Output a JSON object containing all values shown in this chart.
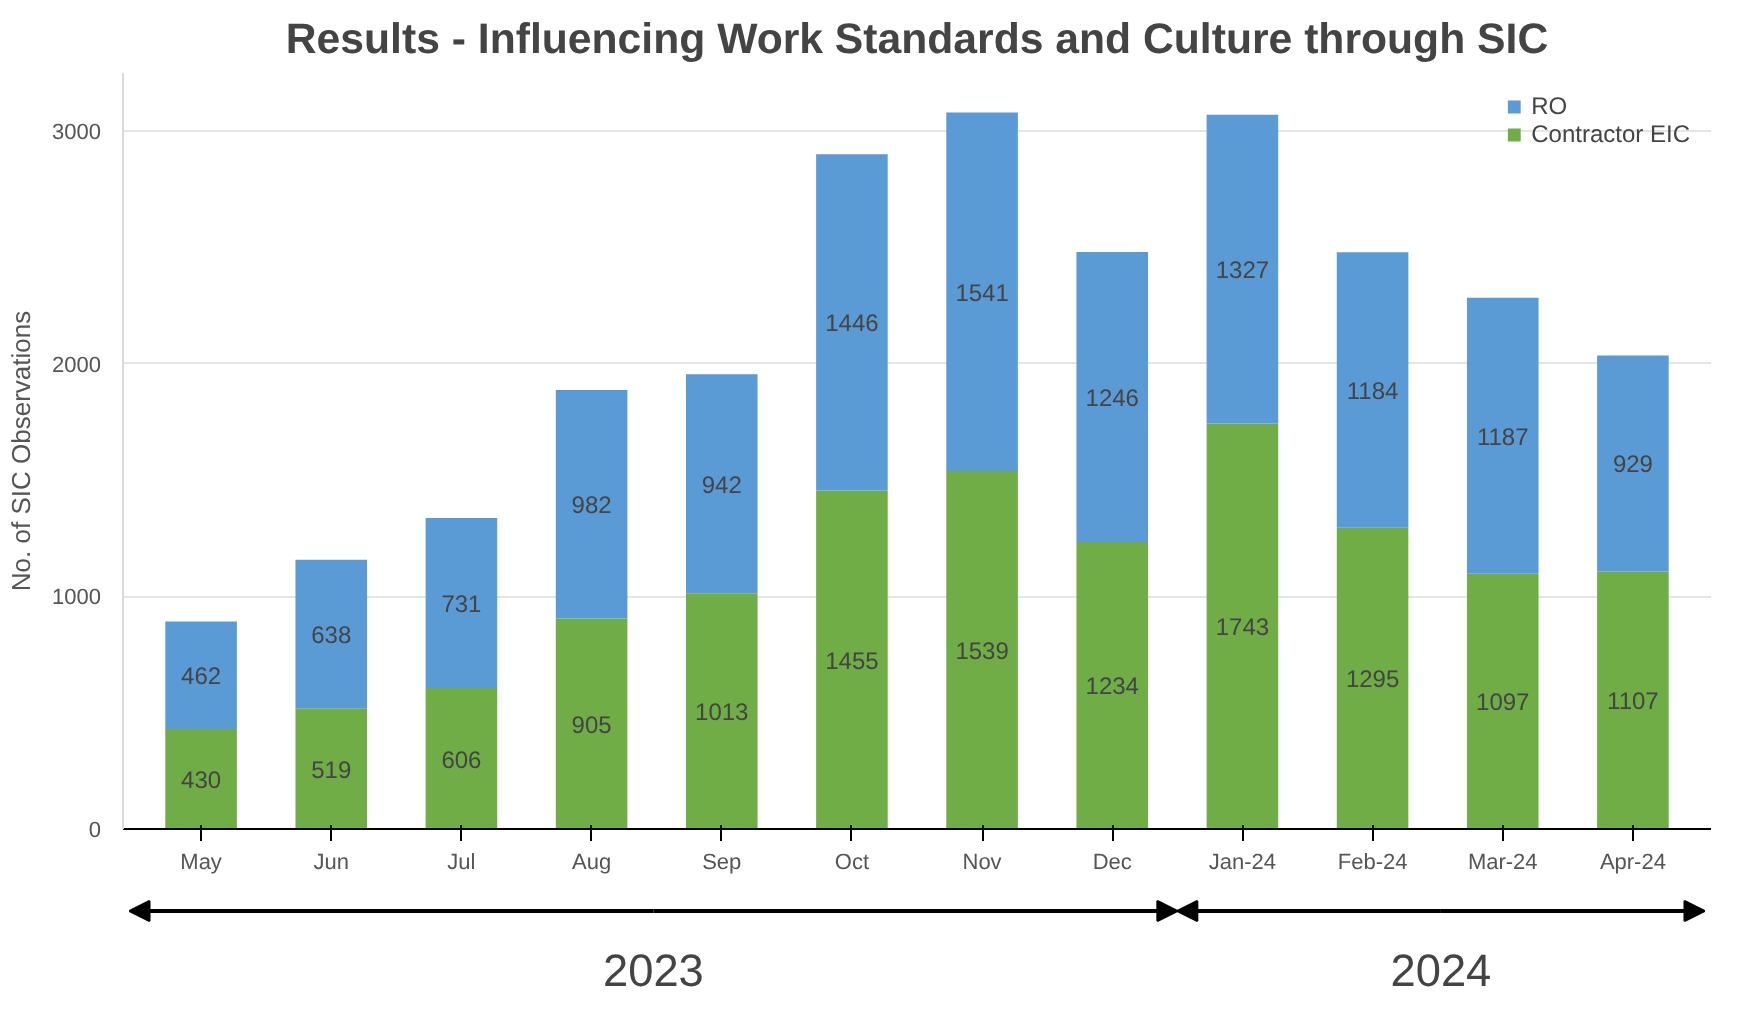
{
  "chart_data": {
    "type": "bar",
    "stacked": true,
    "title": "Results - Influencing Work Standards and Culture through SIC",
    "ylabel": "No. of SIC Observations",
    "categories": [
      "May",
      "Jun",
      "Jul",
      "Aug",
      "Sep",
      "Oct",
      "Nov",
      "Dec",
      "Jan-24",
      "Feb-24",
      "Mar-24",
      "Apr-24"
    ],
    "series": [
      {
        "name": "Contractor EIC",
        "color": "#70ad47",
        "values": [
          430,
          519,
          606,
          905,
          1013,
          1455,
          1539,
          1234,
          1743,
          1295,
          1097,
          1107
        ]
      },
      {
        "name": "RO",
        "color": "#5b9bd5",
        "values": [
          462,
          638,
          731,
          982,
          942,
          1446,
          1541,
          1246,
          1327,
          1184,
          1187,
          929
        ]
      }
    ],
    "ylim": [
      0,
      3250
    ],
    "yticks": [
      0,
      1000,
      2000,
      3000
    ],
    "grid": "y",
    "legend": "top right",
    "data_labels": true,
    "annotations": [
      "2023",
      "2024"
    ]
  }
}
